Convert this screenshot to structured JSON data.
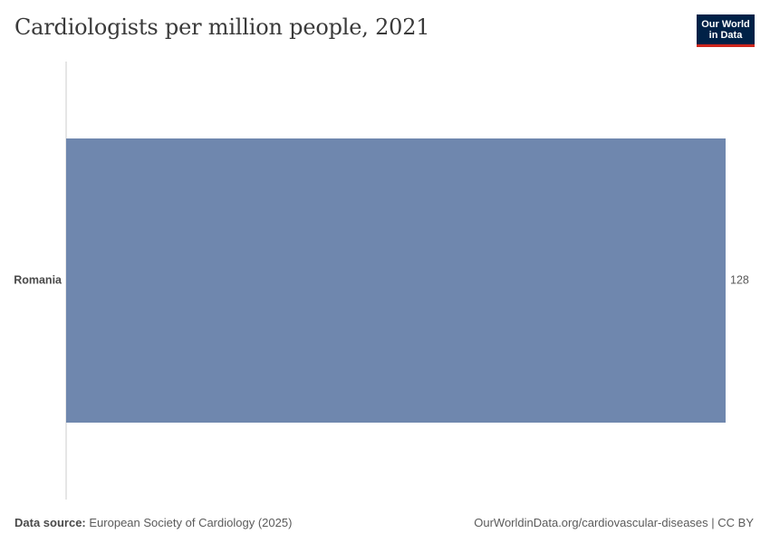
{
  "logo": {
    "line1": "Our World",
    "line2": "in Data"
  },
  "footer": {
    "source_label": "Data source:",
    "source_text": "European Society of Cardiology (2025)",
    "url": "OurWorldinData.org/cardiovascular-diseases | CC BY"
  },
  "colors": {
    "bar": "#6f87ae",
    "axis": "#cccccc"
  },
  "chart_data": {
    "type": "bar",
    "orientation": "horizontal",
    "title": "Cardiologists per million people, 2021",
    "categories": [
      "Romania"
    ],
    "values": [
      128
    ],
    "value_labels": [
      "128"
    ],
    "xlim": [
      0,
      128
    ]
  }
}
